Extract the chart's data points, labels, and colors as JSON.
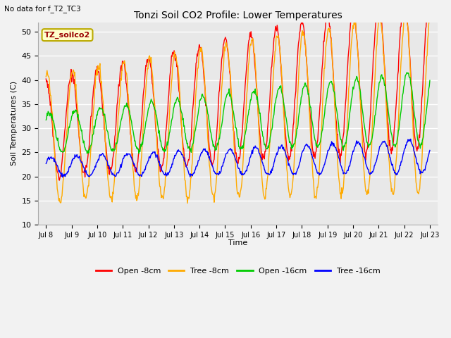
{
  "title": "Tonzi Soil CO2 Profile: Lower Temperatures",
  "subtitle": "No data for f_T2_TC3",
  "ylabel": "Soil Temperatures (C)",
  "xlabel": "Time",
  "ylim": [
    10,
    52
  ],
  "yticks": [
    10,
    15,
    20,
    25,
    30,
    35,
    40,
    45,
    50
  ],
  "legend_label": "TZ_soilco2",
  "legend_items": [
    "Open -8cm",
    "Tree -8cm",
    "Open -16cm",
    "Tree -16cm"
  ],
  "legend_colors": [
    "#ff0000",
    "#ffaa00",
    "#00cc00",
    "#0000ff"
  ],
  "line_colors": [
    "#ff0000",
    "#ffaa00",
    "#00cc00",
    "#0000ff"
  ],
  "n_days": 15,
  "start_day": 8,
  "plot_bg_color": "#e8e8e8",
  "fig_bg_color": "#f2f2f2"
}
